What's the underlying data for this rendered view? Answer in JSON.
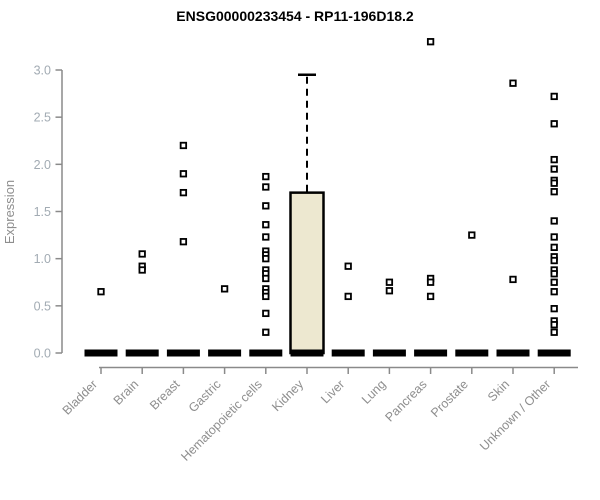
{
  "chart_data": {
    "type": "boxplot-scatter",
    "title": "ENSG00000233454 - RP11-196D18.2",
    "ylabel": "Expression",
    "xlabel": "",
    "ylim": [
      0.0,
      3.0
    ],
    "yticks": [
      0.0,
      0.5,
      1.0,
      1.5,
      2.0,
      2.5,
      3.0
    ],
    "grid": "off",
    "legend": "none",
    "categories": [
      "Bladder",
      "Brain",
      "Breast",
      "Gastric",
      "Hematopoietic cells",
      "Kidney",
      "Liver",
      "Lung",
      "Pancreas",
      "Prostate",
      "Skin",
      "Unknown / Other"
    ],
    "baseline_value": 0.0,
    "series": [
      {
        "category": "Bladder",
        "points": [
          0.65
        ]
      },
      {
        "category": "Brain",
        "points": [
          1.05,
          0.92,
          0.88
        ]
      },
      {
        "category": "Breast",
        "points": [
          2.2,
          1.9,
          1.7,
          1.18
        ]
      },
      {
        "category": "Gastric",
        "points": [
          0.68
        ]
      },
      {
        "category": "Hematopoietic cells",
        "points": [
          1.87,
          1.76,
          1.56,
          1.36,
          1.23,
          1.08,
          1.04,
          1.0,
          0.88,
          0.84,
          0.79,
          0.68,
          0.64,
          0.6,
          0.42,
          0.22
        ]
      },
      {
        "category": "Kidney",
        "points": []
      },
      {
        "category": "Liver",
        "points": [
          0.92,
          0.6
        ]
      },
      {
        "category": "Lung",
        "points": [
          0.75,
          0.66
        ]
      },
      {
        "category": "Pancreas",
        "points": [
          3.3,
          0.79,
          0.75,
          0.6
        ]
      },
      {
        "category": "Prostate",
        "points": [
          1.25
        ]
      },
      {
        "category": "Skin",
        "points": [
          2.86,
          0.78
        ]
      },
      {
        "category": "Unknown / Other",
        "points": [
          2.72,
          2.43,
          2.05,
          1.95,
          1.83,
          1.8,
          1.71,
          1.4,
          1.23,
          1.12,
          1.02,
          0.98,
          0.88,
          0.84,
          0.75,
          0.65,
          0.47,
          0.34,
          0.3,
          0.22
        ]
      }
    ],
    "box": {
      "category": "Kidney",
      "q1": 0.0,
      "median": 0.0,
      "q3": 1.7,
      "whisker_low": 0.0,
      "whisker_high": 2.95
    },
    "colors": {
      "title": "#000000",
      "axis": "#8a8a8a",
      "ytick_label": "#a2abb3",
      "xtick_label": "#8e8e8e",
      "point_stroke": "#000000",
      "point_fill": "#ffffff",
      "baseline": "#000000",
      "box_fill": "#ede8d0",
      "box_stroke": "#000000"
    }
  }
}
